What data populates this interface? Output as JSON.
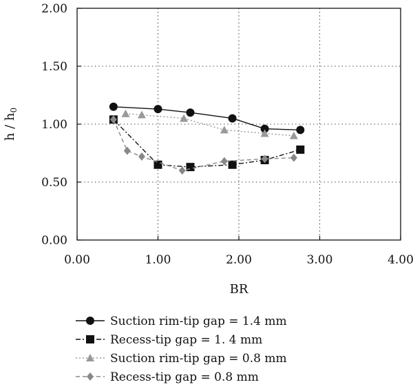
{
  "chart_data": {
    "type": "line",
    "xlabel": "BR",
    "ylabel": "h / h",
    "ylabel_subscript": "0",
    "xlim": [
      0,
      4
    ],
    "ylim": [
      0,
      2
    ],
    "x_ticks": [
      "0.00",
      "1.00",
      "2.00",
      "3.00",
      "4.00"
    ],
    "y_ticks": [
      "0.00",
      "0.50",
      "1.00",
      "1.50",
      "2.00"
    ],
    "grid": "dotted",
    "legend_position": "below",
    "series": [
      {
        "name": "Suction rim-tip gap = 1.4 mm",
        "marker": "circle",
        "line": "solid",
        "color": "#111111",
        "points": [
          [
            0.45,
            1.15
          ],
          [
            1.0,
            1.13
          ],
          [
            1.4,
            1.1
          ],
          [
            1.92,
            1.05
          ],
          [
            2.32,
            0.96
          ],
          [
            2.76,
            0.95
          ]
        ]
      },
      {
        "name": "Recess-tip gap = 1. 4 mm",
        "marker": "square",
        "line": "dashdot",
        "color": "#111111",
        "points": [
          [
            0.45,
            1.04
          ],
          [
            1.0,
            0.65
          ],
          [
            1.4,
            0.63
          ],
          [
            1.92,
            0.65
          ],
          [
            2.32,
            0.69
          ],
          [
            2.76,
            0.78
          ]
        ]
      },
      {
        "name": "Suction rim-tip gap = 0.8 mm",
        "marker": "triangle",
        "line": "dotted",
        "color": "#999999",
        "points": [
          [
            0.6,
            1.09
          ],
          [
            0.8,
            1.08
          ],
          [
            1.32,
            1.05
          ],
          [
            1.82,
            0.95
          ],
          [
            2.32,
            0.92
          ],
          [
            2.68,
            0.9
          ]
        ]
      },
      {
        "name": "Recess-tip gap = 0.8 mm",
        "marker": "diamond",
        "line": "dashed",
        "color": "#888888",
        "points": [
          [
            0.45,
            1.04
          ],
          [
            0.62,
            0.77
          ],
          [
            0.8,
            0.72
          ],
          [
            1.3,
            0.6
          ],
          [
            1.82,
            0.68
          ],
          [
            2.32,
            0.7
          ],
          [
            2.68,
            0.71
          ]
        ]
      }
    ]
  }
}
